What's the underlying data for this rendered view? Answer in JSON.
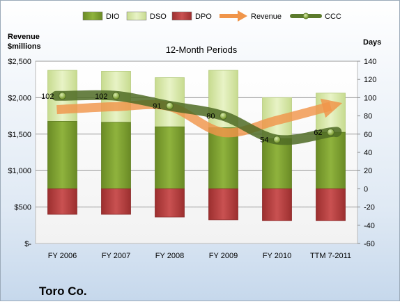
{
  "chart_data": {
    "type": "bar",
    "title": "12-Month Periods",
    "company": "Toro Co.",
    "categories": [
      "FY 2006",
      "FY 2007",
      "FY 2008",
      "FY 2009",
      "FY 2010",
      "TTM 7-2011"
    ],
    "left_axis": {
      "label_line1": "Revenue",
      "label_line2": "$millions",
      "ylim": [
        0,
        2500
      ],
      "ticks": [
        0,
        500,
        1000,
        1500,
        2000,
        2500
      ],
      "tick_labels": [
        "$-",
        "$500",
        "$1,000",
        "$1,500",
        "$2,000",
        "$2,500"
      ]
    },
    "right_axis": {
      "label": "Days",
      "ylim": [
        -60,
        140
      ],
      "ticks": [
        -60,
        -40,
        -20,
        0,
        20,
        40,
        60,
        80,
        100,
        120,
        140
      ],
      "tick_labels": [
        "-60",
        "-40",
        "-20",
        "0",
        "20",
        "40",
        "60",
        "80",
        "100",
        "120",
        "140"
      ]
    },
    "series": [
      {
        "name": "DIO",
        "axis": "right",
        "kind": "stacked-bar",
        "color": "#7a9b2e",
        "values": [
          74,
          73,
          68,
          67,
          55,
          62
        ]
      },
      {
        "name": "DSO",
        "axis": "right",
        "kind": "stacked-bar",
        "color": "#d6e7a6",
        "values": [
          56,
          56,
          54,
          63,
          45,
          43
        ]
      },
      {
        "name": "DPO",
        "axis": "right",
        "kind": "negative-bar",
        "color": "#b53a3a",
        "values": [
          -28,
          -28,
          -31,
          -34,
          -35,
          -35
        ]
      },
      {
        "name": "Revenue",
        "axis": "left",
        "kind": "arrow-line",
        "color": "#f0954a",
        "values": [
          1836,
          1877,
          1878,
          1523,
          1690,
          1884
        ]
      },
      {
        "name": "CCC",
        "axis": "right",
        "kind": "line",
        "color": "#5b7a2c",
        "values": [
          102,
          102,
          91,
          80,
          54,
          62
        ],
        "data_labels": [
          "102",
          "102",
          "91",
          "80",
          "54",
          "62"
        ]
      }
    ],
    "legend": [
      "DIO",
      "DSO",
      "DPO",
      "Revenue",
      "CCC"
    ],
    "legend_position": "top",
    "grid": true
  }
}
